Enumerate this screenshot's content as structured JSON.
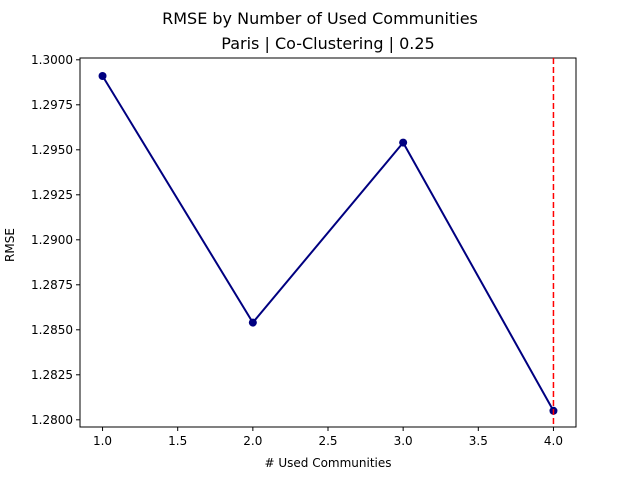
{
  "chart_data": {
    "type": "line",
    "title": "RMSE by Number of Used Communities",
    "subtitle": "Paris | Co-Clustering | 0.25",
    "xlabel": "# Used Communities",
    "ylabel": "RMSE",
    "x": [
      1.0,
      2.0,
      3.0,
      4.0
    ],
    "series": [
      {
        "values": [
          1.2991,
          1.2854,
          1.2954,
          1.2805
        ],
        "color": "#000080"
      }
    ],
    "xlim": [
      0.85,
      4.15
    ],
    "ylim": [
      1.2796,
      1.3001
    ],
    "xticks": [
      1.0,
      1.5,
      2.0,
      2.5,
      3.0,
      3.5,
      4.0
    ],
    "xtick_labels": [
      "1.0",
      "1.5",
      "2.0",
      "2.5",
      "3.0",
      "3.5",
      "4.0"
    ],
    "yticks": [
      1.28,
      1.2825,
      1.285,
      1.2875,
      1.29,
      1.2925,
      1.295,
      1.2975,
      1.3
    ],
    "ytick_labels": [
      "1.2800",
      "1.2825",
      "1.2850",
      "1.2875",
      "1.2900",
      "1.2925",
      "1.2950",
      "1.2975",
      "1.3000"
    ],
    "reference_line": {
      "x": 4.0,
      "color": "#ff0000",
      "style": "dashed"
    },
    "grid": false,
    "legend": false
  }
}
